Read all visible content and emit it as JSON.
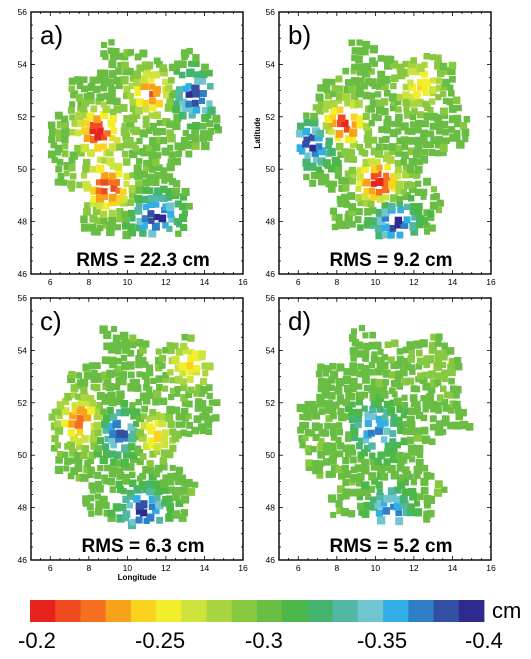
{
  "chart_data": [
    {
      "type": "scatter",
      "panel": "a)",
      "annotation": "RMS = 22.3 cm",
      "xlabel": "",
      "ylabel": "",
      "xlim": [
        5,
        16
      ],
      "ylim": [
        46,
        56
      ],
      "xticks": [
        "6",
        "8",
        "10",
        "12",
        "14",
        "16"
      ],
      "yticks": [
        "46",
        "48",
        "50",
        "52",
        "54",
        "56"
      ],
      "anomalies": [
        {
          "name": "high center west",
          "x": 8.5,
          "y": 51.4,
          "value": -0.2
        },
        {
          "name": "high center south-west",
          "x": 9.0,
          "y": 49.3,
          "value": -0.2
        },
        {
          "name": "high center east",
          "x": 11.3,
          "y": 52.9,
          "value": -0.22
        },
        {
          "name": "low region north-east",
          "x": 13.5,
          "y": 52.8,
          "value": -0.4
        },
        {
          "name": "low region south",
          "x": 11.5,
          "y": 48.2,
          "value": -0.4
        }
      ]
    },
    {
      "type": "scatter",
      "panel": "b)",
      "annotation": "RMS = 9.2 cm",
      "xlabel": "",
      "ylabel": "Latitude",
      "xlim": [
        5,
        16
      ],
      "ylim": [
        46,
        56
      ],
      "xticks": [
        "6",
        "8",
        "10",
        "12",
        "14",
        "16"
      ],
      "yticks": [
        "46",
        "48",
        "50",
        "52",
        "54",
        "56"
      ],
      "anomalies": [
        {
          "name": "high center west",
          "x": 8.3,
          "y": 51.7,
          "value": -0.2
        },
        {
          "name": "high center south",
          "x": 10.2,
          "y": 49.5,
          "value": -0.2
        },
        {
          "name": "high center north-east",
          "x": 12.3,
          "y": 53.2,
          "value": -0.25
        },
        {
          "name": "low region west",
          "x": 6.8,
          "y": 51.0,
          "value": -0.4
        },
        {
          "name": "low region south",
          "x": 11.0,
          "y": 48.0,
          "value": -0.4
        }
      ]
    },
    {
      "type": "scatter",
      "panel": "c)",
      "annotation": "RMS = 6.3 cm",
      "xlabel": "Longitude",
      "ylabel": "",
      "xlim": [
        5,
        16
      ],
      "ylim": [
        46,
        56
      ],
      "xticks": [
        "6",
        "8",
        "10",
        "12",
        "14",
        "16"
      ],
      "yticks": [
        "46",
        "48",
        "50",
        "52",
        "54",
        "56"
      ],
      "anomalies": [
        {
          "name": "high center west",
          "x": 7.6,
          "y": 51.3,
          "value": -0.22
        },
        {
          "name": "low center middle",
          "x": 9.7,
          "y": 50.9,
          "value": -0.4
        },
        {
          "name": "high center middle-east",
          "x": 11.2,
          "y": 50.8,
          "value": -0.24
        },
        {
          "name": "high center north-east",
          "x": 13.3,
          "y": 53.5,
          "value": -0.25
        },
        {
          "name": "low region south",
          "x": 10.8,
          "y": 47.9,
          "value": -0.4
        }
      ]
    },
    {
      "type": "scatter",
      "panel": "d)",
      "annotation": "RMS = 5.2 cm",
      "xlabel": "",
      "ylabel": "",
      "xlim": [
        5,
        16
      ],
      "ylim": [
        46,
        56
      ],
      "xticks": [
        "6",
        "8",
        "10",
        "12",
        "14",
        "16"
      ],
      "yticks": [
        "46",
        "48",
        "50",
        "52",
        "54",
        "56"
      ],
      "anomalies": [
        {
          "name": "low center middle",
          "x": 10.0,
          "y": 51.0,
          "value": -0.38
        },
        {
          "name": "low region south",
          "x": 10.8,
          "y": 47.9,
          "value": -0.38
        },
        {
          "name": "mid center north-east",
          "x": 13.0,
          "y": 53.4,
          "value": -0.29
        }
      ]
    }
  ],
  "colorbar": {
    "unit": "cm",
    "range": [
      -0.2,
      -0.4
    ],
    "tick_labels": [
      "-0.2",
      "-0.25",
      "-0.3",
      "-0.35",
      "-0.4"
    ],
    "colors": [
      "#e8231e",
      "#ef4a20",
      "#f46f20",
      "#f8a21c",
      "#fbd21f",
      "#f2ef2a",
      "#cee33c",
      "#a8d540",
      "#86c83f",
      "#68bd42",
      "#4db84a",
      "#45b46e",
      "#52b8a4",
      "#6fc6d1",
      "#32aee6",
      "#2f7fc7",
      "#324fa4",
      "#2f2a8f"
    ],
    "band_values": [
      -0.2,
      -0.2118,
      -0.2235,
      -0.2353,
      -0.2471,
      -0.2588,
      -0.2706,
      -0.2824,
      -0.2941,
      -0.3059,
      -0.3176,
      -0.3294,
      -0.3412,
      -0.3529,
      -0.3647,
      -0.3765,
      -0.3882,
      -0.4
    ]
  }
}
